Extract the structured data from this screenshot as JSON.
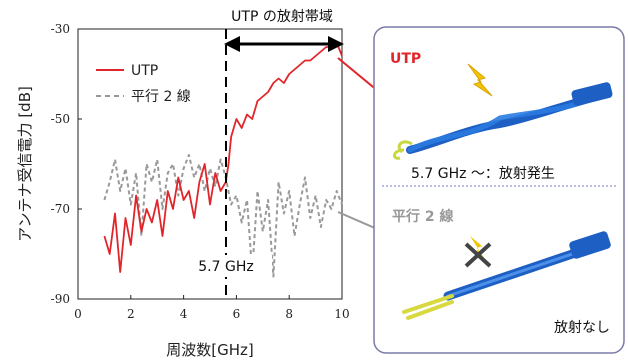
{
  "chart_data": {
    "type": "line",
    "title": "UTP の放射帯域",
    "xlabel": "周波数[GHz]",
    "ylabel": "アンテナ受信電力 [dB]",
    "xlim": [
      0,
      10
    ],
    "ylim": [
      -90,
      -30
    ],
    "x_ticks": [
      "0",
      "2",
      "4",
      "6",
      "8",
      "10"
    ],
    "y_ticks": [
      "-30",
      "-50",
      "-70",
      "-90"
    ],
    "legend_position": "top-left",
    "annotation_vline": {
      "x": 5.7,
      "label": "5.7 GHz"
    },
    "band_arrow": {
      "x_start": 5.7,
      "x_end": 10.0
    },
    "series": [
      {
        "name": "UTP",
        "color": "#e0262b",
        "style": "solid",
        "x": [
          1.0,
          1.2,
          1.4,
          1.6,
          1.8,
          2.0,
          2.2,
          2.4,
          2.6,
          2.8,
          3.0,
          3.2,
          3.4,
          3.6,
          3.8,
          4.0,
          4.2,
          4.4,
          4.6,
          4.8,
          5.0,
          5.2,
          5.4,
          5.6,
          5.7,
          5.8,
          6.0,
          6.2,
          6.4,
          6.6,
          6.8,
          7.0,
          7.2,
          7.4,
          7.6,
          7.8,
          8.0,
          8.2,
          8.4,
          8.6,
          8.8,
          9.0,
          9.2,
          9.4,
          9.6,
          9.8,
          10.0
        ],
        "y": [
          -76,
          -80,
          -71,
          -84,
          -72,
          -78,
          -67,
          -75,
          -70,
          -73,
          -68,
          -76,
          -66,
          -70,
          -63,
          -68,
          -66,
          -72,
          -64,
          -60,
          -69,
          -62,
          -66,
          -64,
          -60,
          -54,
          -50,
          -52,
          -49,
          -50,
          -46,
          -45,
          -44,
          -42,
          -41,
          -42,
          -40,
          -39,
          -38,
          -37,
          -37,
          -36,
          -35,
          -34,
          -34,
          -33,
          -36
        ]
      },
      {
        "name": "平行 2 線",
        "color": "#999999",
        "style": "dashed",
        "x": [
          1.0,
          1.2,
          1.4,
          1.6,
          1.8,
          2.0,
          2.2,
          2.4,
          2.6,
          2.8,
          3.0,
          3.2,
          3.4,
          3.6,
          3.8,
          4.0,
          4.2,
          4.4,
          4.6,
          4.8,
          5.0,
          5.2,
          5.4,
          5.6,
          5.8,
          6.0,
          6.2,
          6.4,
          6.6,
          6.8,
          7.0,
          7.2,
          7.4,
          7.6,
          7.8,
          8.0,
          8.2,
          8.4,
          8.6,
          8.8,
          9.0,
          9.2,
          9.4,
          9.6,
          9.8,
          10.0
        ],
        "y": [
          -68,
          -64,
          -59,
          -66,
          -61,
          -69,
          -62,
          -76,
          -60,
          -64,
          -59,
          -70,
          -62,
          -60,
          -67,
          -61,
          -58,
          -63,
          -60,
          -66,
          -61,
          -65,
          -59,
          -63,
          -69,
          -67,
          -73,
          -68,
          -84,
          -66,
          -75,
          -68,
          -85,
          -64,
          -71,
          -66,
          -76,
          -69,
          -63,
          -72,
          -67,
          -74,
          -68,
          -70,
          -66,
          -69
        ]
      }
    ]
  },
  "panel": {
    "utp_label": "UTP",
    "utp_caption": "5.7 GHz ～：放射発生",
    "parallel_label": "平行 2 線",
    "parallel_caption": "放射なし"
  }
}
